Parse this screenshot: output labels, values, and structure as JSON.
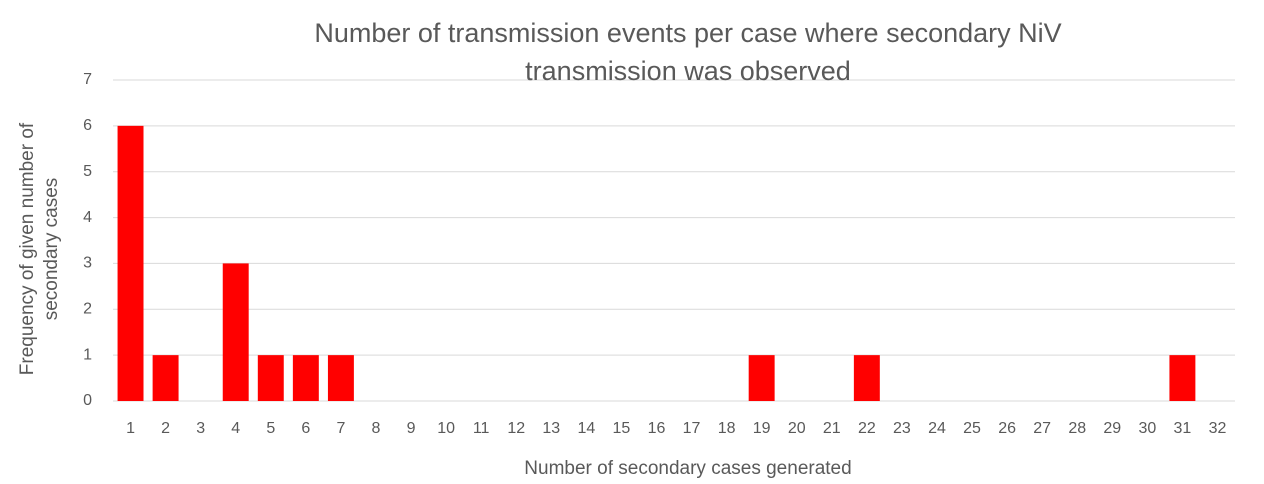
{
  "chart_data": {
    "type": "bar",
    "title": "Number of transmission events per case where secondary NiV transmission was observed",
    "x_label": "Number of secondary cases generated",
    "y_label": "Frequency of given number of secondary cases",
    "categories": [
      "1",
      "2",
      "3",
      "4",
      "5",
      "6",
      "7",
      "8",
      "9",
      "10",
      "11",
      "12",
      "13",
      "14",
      "15",
      "16",
      "17",
      "18",
      "19",
      "20",
      "21",
      "22",
      "23",
      "24",
      "25",
      "26",
      "27",
      "28",
      "29",
      "30",
      "31",
      "32"
    ],
    "values": [
      6,
      1,
      0,
      3,
      1,
      1,
      1,
      0,
      0,
      0,
      0,
      0,
      0,
      0,
      0,
      0,
      0,
      0,
      1,
      0,
      0,
      1,
      0,
      0,
      0,
      0,
      0,
      0,
      0,
      0,
      1,
      0
    ],
    "color": "#ff0000",
    "ylim": [
      0,
      7
    ],
    "yticks": [
      0,
      1,
      2,
      3,
      4,
      5,
      6,
      7
    ],
    "grid": true
  }
}
